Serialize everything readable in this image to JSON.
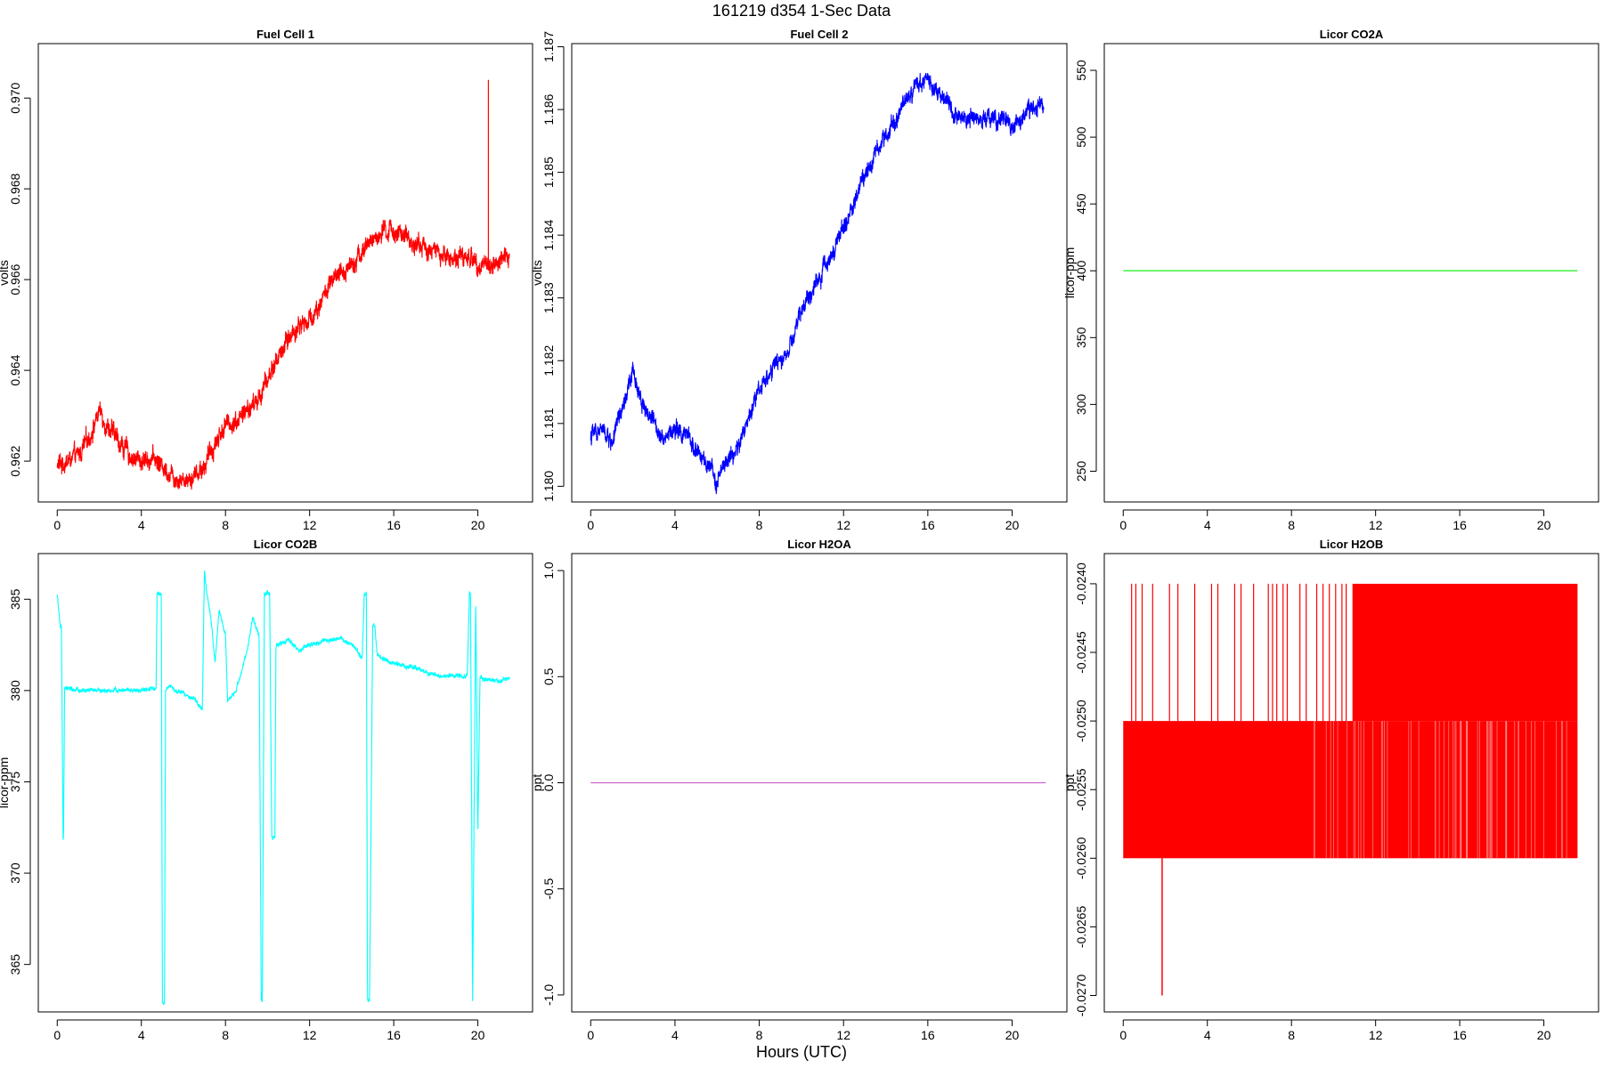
{
  "figure": {
    "main_title": "161219   d354   1-Sec Data",
    "xlabel": "Hours (UTC)"
  },
  "chart_data": [
    {
      "type": "line",
      "title": "Fuel Cell 1",
      "ylabel": "volts",
      "xlim": [
        -0.9,
        22.6
      ],
      "ylim": [
        0.9611,
        0.9712
      ],
      "xticks": [
        0,
        4,
        8,
        12,
        16,
        20
      ],
      "yticks": [
        0.962,
        0.964,
        0.966,
        0.968,
        0.97
      ],
      "ytick_labels": [
        "0.962",
        "0.964",
        "0.966",
        "0.968",
        "0.970"
      ],
      "color": "#ff0000",
      "noise": 0.00018,
      "series": [
        {
          "x": [
            0,
            0.5,
            1,
            1.5,
            2,
            2.5,
            3,
            3.5,
            4,
            4.5,
            5,
            5.5,
            6,
            6.5,
            7,
            7.5,
            8,
            8.5,
            9,
            9.5,
            10,
            10.5,
            11,
            11.5,
            12,
            12.5,
            13,
            13.5,
            14,
            14.5,
            15,
            15.5,
            16,
            16.5,
            17,
            17.5,
            18,
            18.5,
            19,
            19.5,
            20,
            20.5,
            21,
            21.5
          ],
          "y": [
            0.9619,
            0.962,
            0.9621,
            0.9625,
            0.9631,
            0.9627,
            0.9624,
            0.9621,
            0.962,
            0.9621,
            0.9619,
            0.9617,
            0.9616,
            0.9617,
            0.9619,
            0.9624,
            0.9628,
            0.9629,
            0.9631,
            0.9633,
            0.9638,
            0.9643,
            0.9647,
            0.965,
            0.9651,
            0.9655,
            0.9659,
            0.9661,
            0.9664,
            0.9666,
            0.9669,
            0.967,
            0.9671,
            0.9669,
            0.9668,
            0.9667,
            0.9666,
            0.9665,
            0.9665,
            0.9665,
            0.9664,
            0.9663,
            0.9664,
            0.9665
          ]
        }
      ],
      "spikes": [
        {
          "x": 20.5,
          "y_from": 0.9663,
          "y_to": 0.9704
        }
      ]
    },
    {
      "type": "line",
      "title": "Fuel Cell 2",
      "ylabel": "volts",
      "xlim": [
        -0.9,
        22.6
      ],
      "ylim": [
        1.17975,
        1.18705
      ],
      "xticks": [
        0,
        4,
        8,
        12,
        16,
        20
      ],
      "yticks": [
        1.18,
        1.181,
        1.182,
        1.183,
        1.184,
        1.185,
        1.186,
        1.187
      ],
      "ytick_labels": [
        "1.180",
        "1.181",
        "1.182",
        "1.183",
        "1.184",
        "1.185",
        "1.186",
        "1.187"
      ],
      "color": "#0000ff",
      "noise": 0.00012,
      "series": [
        {
          "x": [
            0,
            0.5,
            1,
            1.5,
            2,
            2.5,
            3,
            3.5,
            4,
            4.5,
            5,
            5.5,
            6,
            6.5,
            7,
            7.5,
            8,
            8.5,
            9,
            9.5,
            10,
            10.5,
            11,
            11.5,
            12,
            12.5,
            13,
            13.5,
            14,
            14.5,
            15,
            15.5,
            16,
            16.5,
            17,
            17.5,
            18,
            18.5,
            19,
            19.5,
            20,
            20.5,
            21,
            21.5
          ],
          "y": [
            1.1808,
            1.1809,
            1.1807,
            1.1812,
            1.1818,
            1.1813,
            1.181,
            1.1808,
            1.1809,
            1.1808,
            1.1806,
            1.1803,
            1.1801,
            1.1804,
            1.1806,
            1.1811,
            1.1816,
            1.1818,
            1.182,
            1.1822,
            1.1828,
            1.1831,
            1.1834,
            1.1838,
            1.1841,
            1.1845,
            1.185,
            1.1853,
            1.1856,
            1.1859,
            1.1862,
            1.1864,
            1.1865,
            1.1863,
            1.1861,
            1.1859,
            1.1859,
            1.1858,
            1.1859,
            1.1858,
            1.1857,
            1.1859,
            1.186,
            1.1861
          ]
        }
      ]
    },
    {
      "type": "line",
      "title": "Licor CO2A",
      "ylabel": "licor-ppm",
      "xlim": [
        -0.9,
        22.6
      ],
      "ylim": [
        227,
        570
      ],
      "xticks": [
        0,
        4,
        8,
        12,
        16,
        20
      ],
      "yticks": [
        250,
        300,
        350,
        400,
        450,
        500,
        550
      ],
      "ytick_labels": [
        "250",
        "300",
        "350",
        "400",
        "450",
        "500",
        "550"
      ],
      "color": "#33ee33",
      "noise": 0,
      "series": [
        {
          "x": [
            0,
            21.6
          ],
          "y": [
            400,
            400
          ]
        }
      ]
    },
    {
      "type": "line",
      "title": "Licor CO2B",
      "ylabel": "licor-ppm",
      "xlim": [
        -0.9,
        22.6
      ],
      "ylim": [
        362.4,
        387.5
      ],
      "xticks": [
        0,
        4,
        8,
        12,
        16,
        20
      ],
      "yticks": [
        365,
        370,
        375,
        380,
        385
      ],
      "ytick_labels": [
        "365",
        "370",
        "375",
        "380",
        "385"
      ],
      "color": "#00ffff",
      "noise": 0.1,
      "series": [
        {
          "x": [
            0,
            0.15,
            0.2,
            0.28,
            0.3,
            0.35,
            0.4,
            1,
            2,
            3,
            4,
            4.7,
            4.75,
            4.8,
            4.95,
            5.0,
            5.1,
            5.15,
            5.4,
            5.6,
            6,
            6.5,
            6.9,
            7.0,
            7.1,
            7.3,
            7.5,
            7.7,
            8.0,
            8.1,
            8.2,
            8.5,
            9.0,
            9.3,
            9.6,
            9.7,
            9.75,
            9.85,
            10.1,
            10.2,
            10.35,
            10.4,
            10.5,
            11,
            11.5,
            12,
            12.5,
            13,
            13.5,
            14,
            14.5,
            14.6,
            14.7,
            14.75,
            14.85,
            15.0,
            15.1,
            15.2,
            15.3,
            15.5,
            16,
            16.5,
            17,
            17.5,
            18,
            18.5,
            19,
            19.5,
            19.6,
            19.65,
            19.75,
            19.9,
            20.0,
            20.1,
            20.3,
            21,
            21.5
          ],
          "y": [
            385.2,
            383.5,
            383.5,
            371.8,
            371.8,
            380.0,
            380.1,
            380.0,
            380.0,
            380.0,
            380.0,
            380.1,
            385.3,
            385.3,
            385.3,
            362.9,
            362.9,
            380.0,
            380.3,
            379.9,
            379.9,
            379.5,
            379.0,
            386.5,
            385.5,
            384.0,
            381.5,
            384.5,
            383.0,
            379.3,
            379.5,
            380.0,
            382.0,
            384.0,
            383.0,
            363.0,
            363.0,
            385.3,
            385.3,
            372.0,
            372.0,
            382.5,
            382.5,
            382.8,
            382.2,
            382.5,
            382.6,
            382.8,
            382.8,
            382.5,
            381.8,
            385.3,
            385.3,
            363.0,
            363.0,
            383.5,
            383.5,
            382.0,
            381.8,
            381.8,
            381.5,
            381.3,
            381.3,
            381.0,
            380.8,
            380.8,
            380.8,
            380.8,
            385.3,
            385.3,
            363.0,
            385.0,
            372.0,
            380.7,
            380.6,
            380.5,
            380.7
          ]
        }
      ]
    },
    {
      "type": "line",
      "title": "Licor H2OA",
      "ylabel": "ppt",
      "xlim": [
        -0.9,
        22.6
      ],
      "ylim": [
        -1.08,
        1.08
      ],
      "xticks": [
        0,
        4,
        8,
        12,
        16,
        20
      ],
      "yticks": [
        -1.0,
        -0.5,
        0.0,
        0.5,
        1.0
      ],
      "ytick_labels": [
        "-1.0",
        "-0.5",
        "0.0",
        "0.5",
        "1.0"
      ],
      "color": "#cc66cc",
      "noise": 0,
      "series": [
        {
          "x": [
            0,
            21.6
          ],
          "y": [
            0,
            0
          ]
        }
      ]
    },
    {
      "type": "line",
      "title": "Licor H2OB",
      "ylabel": "ppt",
      "xlim": [
        -0.9,
        22.6
      ],
      "ylim": [
        -0.02712,
        -0.02378
      ],
      "xticks": [
        0,
        4,
        8,
        12,
        16,
        20
      ],
      "yticks": [
        -0.027,
        -0.0265,
        -0.026,
        -0.0255,
        -0.025,
        -0.0245,
        -0.024
      ],
      "ytick_labels": [
        "-0.0270",
        "-0.0265",
        "-0.0260",
        "-0.0255",
        "-0.0250",
        "-0.0245",
        "-0.0240"
      ],
      "color": "#ff0000",
      "levels": [
        -0.024,
        -0.025,
        -0.026
      ],
      "band": {
        "x": [
          0,
          21.6
        ],
        "y": [
          -0.026,
          -0.025
        ]
      },
      "upper_band": {
        "x": [
          10.9,
          21.6
        ],
        "y": [
          -0.025,
          -0.024
        ]
      },
      "sparse_spikes_x": [
        0.4,
        0.6,
        0.9,
        1.4,
        2.2,
        2.6,
        3.4,
        4.2,
        4.5,
        5.3,
        5.6,
        6.2,
        6.9,
        7.1,
        7.3,
        7.6,
        7.8,
        8.4,
        8.7,
        9.2,
        9.5,
        9.8,
        10.1,
        10.4,
        10.6
      ],
      "low_spike": {
        "x": 1.85,
        "y": -0.027
      }
    }
  ]
}
